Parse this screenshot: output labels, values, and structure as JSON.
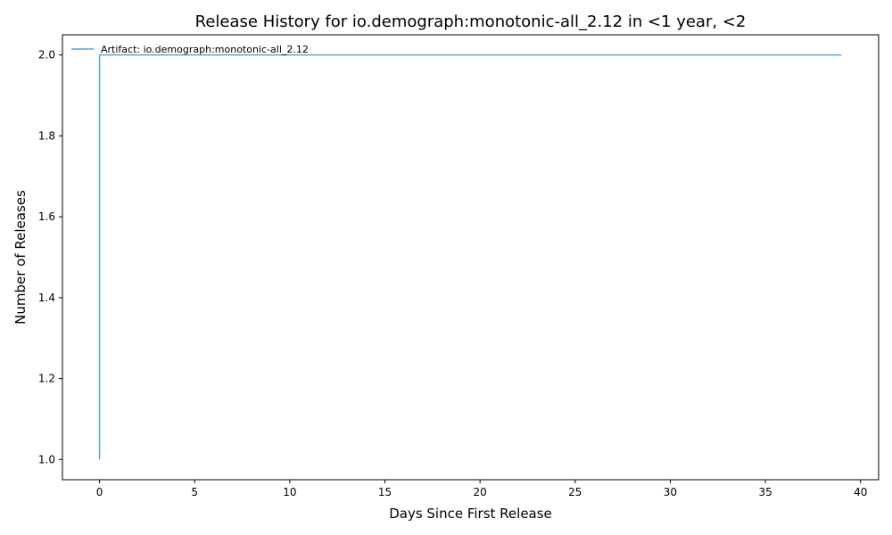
{
  "chart_data": {
    "type": "line",
    "title": "Release History for io.demograph:monotonic-all_2.12 in <1 year, <2",
    "xlabel": "Days Since First Release",
    "ylabel": "Number of Releases",
    "xlim": [
      -1.95,
      40.95
    ],
    "ylim": [
      0.95,
      2.05
    ],
    "xticks": [
      0,
      5,
      10,
      15,
      20,
      25,
      30,
      35,
      40
    ],
    "xtick_labels": [
      "0",
      "5",
      "10",
      "15",
      "20",
      "25",
      "30",
      "35",
      "40"
    ],
    "yticks": [
      1.0,
      1.2,
      1.4,
      1.6,
      1.8,
      2.0
    ],
    "ytick_labels": [
      "1.0",
      "1.2",
      "1.4",
      "1.6",
      "1.8",
      "2.0"
    ],
    "grid": false,
    "legend_position": "upper-left",
    "series": [
      {
        "name": "Artifact: io.demograph:monotonic-all_2.12",
        "color": "#5aa5d6",
        "step": true,
        "x": [
          0,
          0,
          39
        ],
        "y": [
          1,
          2,
          2
        ]
      }
    ]
  }
}
